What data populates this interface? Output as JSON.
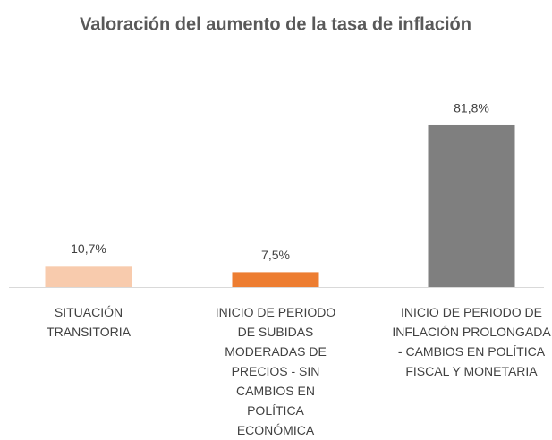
{
  "chart_data": {
    "type": "bar",
    "title": "Valoración del aumento de la tasa de inflación",
    "categories": [
      "SITUACIÓN TRANSITORIA",
      "INICIO DE PERIODO DE SUBIDAS MODERADAS DE PRECIOS - SIN CAMBIOS EN POLÍTICA ECONÓMICA",
      "INICIO DE PERIODO DE INFLACIÓN PROLONGADA - CAMBIOS EN POLÍTICA FISCAL Y MONETARIA"
    ],
    "values": [
      10.7,
      7.5,
      81.8
    ],
    "value_labels": [
      "10,7%",
      "7,5%",
      "81,8%"
    ],
    "colors": [
      "#f8cbad",
      "#ed7d31",
      "#7f7f7f"
    ]
  }
}
